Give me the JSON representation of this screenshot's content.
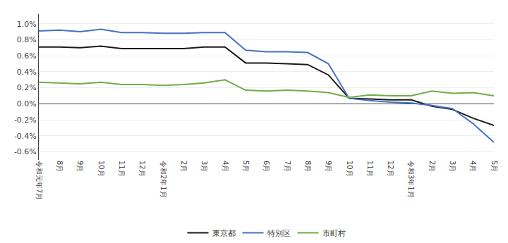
{
  "chart_data": {
    "type": "line",
    "categories": [
      "令和元年7月",
      "8月",
      "9月",
      "10月",
      "11月",
      "12月",
      "令和2年1月",
      "2月",
      "3月",
      "4月",
      "5月",
      "6月",
      "7月",
      "8月",
      "9月",
      "10月",
      "11月",
      "12月",
      "令和3年1月",
      "2月",
      "3月",
      "4月",
      "5月"
    ],
    "series": [
      {
        "name": "東京都",
        "color": "#1a1a1a",
        "values": [
          0.71,
          0.71,
          0.7,
          0.72,
          0.69,
          0.69,
          0.69,
          0.69,
          0.71,
          0.71,
          0.51,
          0.51,
          0.5,
          0.49,
          0.36,
          0.07,
          0.06,
          0.05,
          0.05,
          -0.03,
          -0.07,
          -0.18,
          -0.27
        ]
      },
      {
        "name": "特別区",
        "color": "#4472c4",
        "values": [
          0.91,
          0.92,
          0.9,
          0.93,
          0.89,
          0.89,
          0.88,
          0.88,
          0.89,
          0.89,
          0.67,
          0.65,
          0.65,
          0.64,
          0.5,
          0.07,
          0.04,
          0.02,
          0.01,
          -0.02,
          -0.06,
          -0.25,
          -0.48
        ]
      },
      {
        "name": "市町村",
        "color": "#70ad47",
        "values": [
          0.27,
          0.26,
          0.25,
          0.27,
          0.24,
          0.24,
          0.23,
          0.24,
          0.26,
          0.3,
          0.17,
          0.16,
          0.17,
          0.16,
          0.14,
          0.08,
          0.11,
          0.1,
          0.1,
          0.16,
          0.13,
          0.14,
          0.1
        ]
      }
    ],
    "ylim": [
      -0.7,
      1.12
    ],
    "yticks": [
      {
        "value": -0.6,
        "label": "-0.6%"
      },
      {
        "value": -0.4,
        "label": "-0.4%"
      },
      {
        "value": -0.2,
        "label": "-0.2%"
      },
      {
        "value": 0.0,
        "label": "0.0%"
      },
      {
        "value": 0.2,
        "label": "0.2%"
      },
      {
        "value": 0.4,
        "label": "0.4%"
      },
      {
        "value": 0.6,
        "label": "0.6%"
      },
      {
        "value": 0.8,
        "label": "0.8%"
      },
      {
        "value": 1.0,
        "label": "1.0%"
      }
    ],
    "grid": true,
    "legend": "bottom"
  }
}
